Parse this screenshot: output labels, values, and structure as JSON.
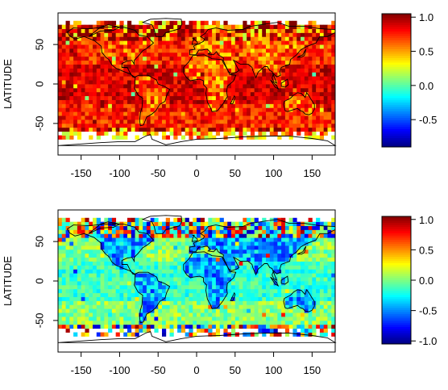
{
  "chart_data": [
    {
      "type": "heatmap",
      "ylabel": "LATITUDE",
      "xlim": [
        -180,
        180
      ],
      "ylim": [
        -90,
        90
      ],
      "x_ticks": [
        -150,
        -100,
        -50,
        0,
        50,
        100,
        150
      ],
      "y_ticks": [
        50,
        0,
        -50
      ],
      "colorbar": {
        "range": [
          -0.9,
          1.05
        ],
        "ticks": [
          "1.0",
          "0.5",
          "0.0",
          "-0.5"
        ],
        "tick_values": [
          1.0,
          0.5,
          0.0,
          -0.5
        ]
      },
      "colormap": "jet",
      "grid": "5-degree cells, land outlines overlaid",
      "pattern": {
        "base": 0.75,
        "tropics": 0.88,
        "land_mid": 0.62,
        "high_lat_noise": 0.6,
        "notes": "Mostly strongly positive (orange-red), stronger over tropical oceans; noisy/patchy in high latitudes"
      }
    },
    {
      "type": "heatmap",
      "ylabel": "LATITUDE",
      "xlim": [
        -180,
        180
      ],
      "ylim": [
        -90,
        90
      ],
      "x_ticks": [
        -150,
        -100,
        -50,
        0,
        50,
        100,
        150
      ],
      "y_ticks": [
        50,
        0,
        -50
      ],
      "colorbar": {
        "range": [
          -1.05,
          1.05
        ],
        "ticks": [
          "1.0",
          "0.5",
          "0.0",
          "-0.5",
          "-1.0"
        ],
        "tick_values": [
          1.0,
          0.5,
          0.0,
          -0.5,
          -1.0
        ]
      },
      "colormap": "jet",
      "grid": "5-degree cells, land outlines overlaid",
      "pattern": {
        "base": 0.02,
        "tropics": -0.15,
        "land_mid": -0.45,
        "high_lat_noise": 1.0,
        "notes": "Mostly near zero (green-cyan), negative patches over South America/Africa, extreme values at high latitudes"
      }
    }
  ],
  "colors": {
    "frame": "#000000",
    "coast": "#000000",
    "missing": "#ffffff"
  }
}
